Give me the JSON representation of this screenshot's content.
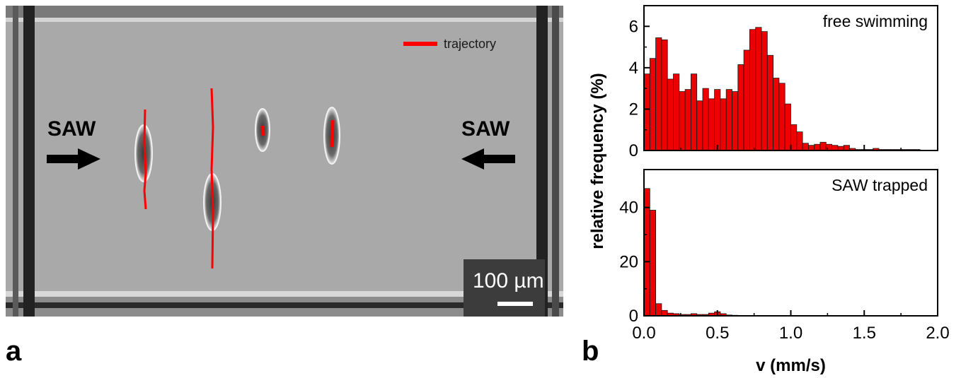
{
  "panel_a": {
    "label": "a",
    "legend_label": "trajectory",
    "saw_left_label": "SAW",
    "saw_right_label": "SAW",
    "scale_bar_label": "100 µm",
    "trajectory_color": "#ff0000"
  },
  "panel_b": {
    "label": "b"
  },
  "chart_data": [
    {
      "type": "bar",
      "annotation": "free swimming",
      "ylabel": "relative frequency (%)",
      "xlabel": "v (mm/s)",
      "bar_color": "#ee0000",
      "bin_width": 0.04,
      "bin_start": 0.0,
      "xlim": [
        0.0,
        2.0
      ],
      "ylim": [
        0,
        7
      ],
      "yticks": [
        0,
        2,
        4,
        6
      ],
      "values": [
        3.7,
        4.45,
        5.45,
        5.35,
        3.45,
        3.7,
        2.85,
        2.95,
        3.7,
        2.4,
        3.0,
        2.5,
        2.95,
        2.5,
        2.95,
        2.85,
        4.15,
        4.85,
        5.85,
        5.95,
        5.75,
        4.6,
        3.5,
        3.25,
        2.25,
        1.25,
        0.9,
        0.35,
        0.25,
        0.3,
        0.4,
        0.3,
        0.25,
        0.2,
        0.25,
        0.1,
        0.05,
        0.05,
        0.05,
        0.1,
        0.05,
        0.05,
        0.05,
        0.05,
        0.05,
        0.05,
        0.05,
        0.0,
        0.0,
        0.0
      ]
    },
    {
      "type": "bar",
      "annotation": "SAW trapped",
      "ylabel": "relative frequency (%)",
      "xlabel": "v (mm/s)",
      "bar_color": "#ee0000",
      "bin_width": 0.04,
      "bin_start": 0.0,
      "xlim": [
        0.0,
        2.0
      ],
      "ylim": [
        0,
        54
      ],
      "yticks": [
        0,
        20,
        40
      ],
      "xticks": [
        0.0,
        0.5,
        1.0,
        1.5,
        2.0
      ],
      "xticklabels": [
        "0.0",
        "0.5",
        "1.0",
        "1.5",
        "2.0"
      ],
      "values": [
        47,
        39,
        4.5,
        2.0,
        1.0,
        0.8,
        0.5,
        0.5,
        0.8,
        0.5,
        0.5,
        1.0,
        1.5,
        0.8,
        0.3,
        0.2,
        0.1,
        0.1,
        0.05,
        0.05,
        0,
        0,
        0,
        0,
        0,
        0,
        0,
        0,
        0,
        0,
        0,
        0,
        0,
        0,
        0,
        0,
        0,
        0,
        0,
        0,
        0,
        0,
        0,
        0,
        0,
        0,
        0,
        0,
        0,
        0
      ]
    }
  ]
}
